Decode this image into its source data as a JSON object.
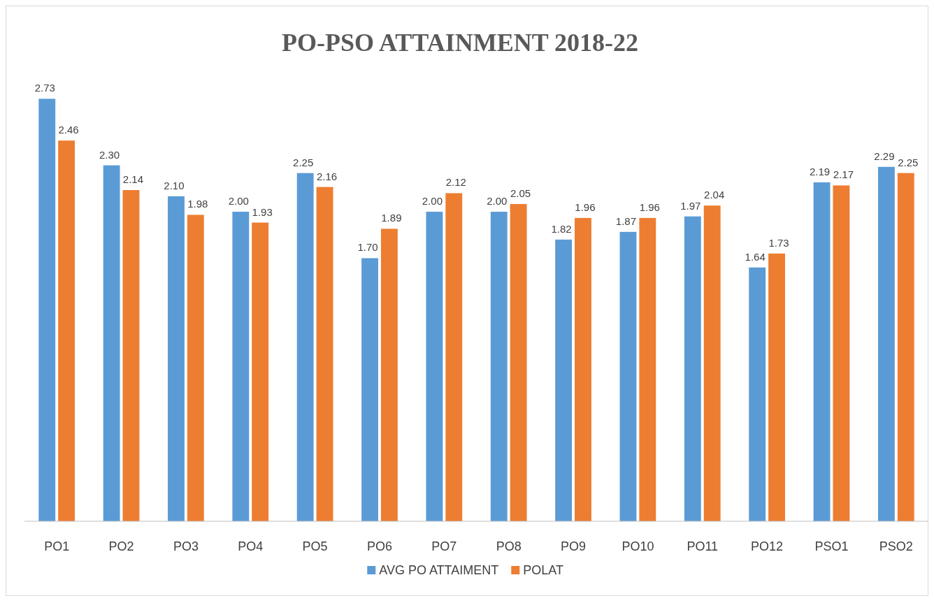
{
  "chart_data": {
    "type": "bar",
    "title": "PO-PSO ATTAINMENT 2018-22",
    "categories": [
      "PO1",
      "PO2",
      "PO3",
      "PO4",
      "PO5",
      "PO6",
      "PO7",
      "PO8",
      "PO9",
      "PO10",
      "PO11",
      "PO12",
      "PSO1",
      "PSO2"
    ],
    "series": [
      {
        "name": "AVG PO ATTAIMENT",
        "color": "#5b9bd5",
        "values": [
          2.73,
          2.3,
          2.1,
          2.0,
          2.25,
          1.7,
          2.0,
          2.0,
          1.82,
          1.87,
          1.97,
          1.64,
          2.19,
          2.29
        ],
        "value_labels": [
          "2.73",
          "2.30",
          "2.10",
          "2.00",
          "2.25",
          "1.70",
          "2.00",
          "2.00",
          "1.82",
          "1.87",
          "1.97",
          "1.64",
          "2.19",
          "2.29"
        ]
      },
      {
        "name": "POLAT",
        "color": "#ed7d31",
        "values": [
          2.46,
          2.14,
          1.98,
          1.93,
          2.16,
          1.89,
          2.12,
          2.05,
          1.96,
          1.96,
          2.04,
          1.73,
          2.17,
          2.25
        ],
        "value_labels": [
          "2.46",
          "2.14",
          "1.98",
          "1.93",
          "2.16",
          "1.89",
          "2.12",
          "2.05",
          "1.96",
          "1.96",
          "2.04",
          "1.73",
          "2.17",
          "2.25"
        ]
      }
    ],
    "tick_labels": "x",
    "legend": "bottom",
    "grid": false
  }
}
